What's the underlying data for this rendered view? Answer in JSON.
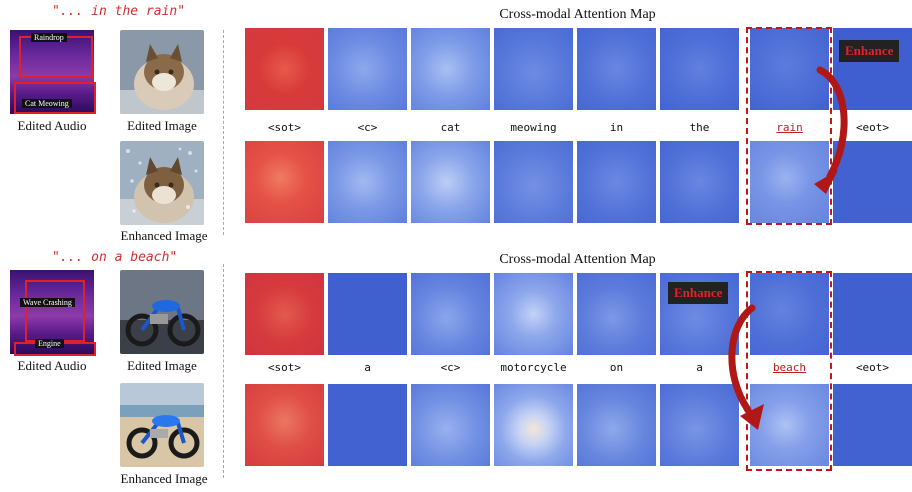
{
  "top": {
    "prompt": "\"... in the rain\"",
    "spec_labels": [
      "Raindrop",
      "Cat Meowing"
    ],
    "edited_audio": "Edited Audio",
    "edited_image": "Edited Image",
    "enhanced_image": "Enhanced Image",
    "title": "Cross-modal Attention Map",
    "tokens": [
      "<sot>",
      "<c>",
      "cat",
      "meowing",
      "in",
      "the",
      "rain",
      "<eot>"
    ],
    "highlight_token": "rain",
    "enhance": "Enhance"
  },
  "bottom": {
    "prompt": "\"... on a beach\"",
    "spec_labels": [
      "Wave Crashing",
      "Engine"
    ],
    "edited_audio": "Edited Audio",
    "edited_image": "Edited Image",
    "enhanced_image": "Enhanced Image",
    "title": "Cross-modal Attention Map",
    "tokens": [
      "<sot>",
      "a",
      "<c>",
      "motorcycle",
      "on",
      "a",
      "beach",
      "<eot>"
    ],
    "highlight_token": "beach",
    "enhance": "Enhance"
  },
  "colors": {
    "accent": "#c01818",
    "attention_high": "#e03535",
    "attention_low": "#3d5ccc"
  }
}
